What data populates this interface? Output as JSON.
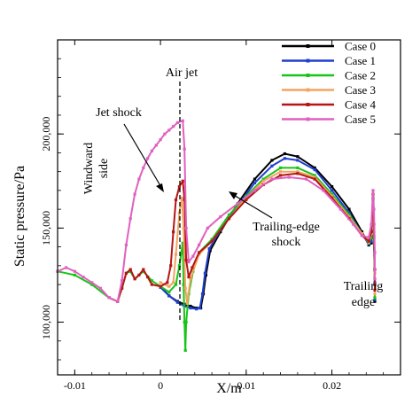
{
  "chart_data": {
    "type": "line",
    "title": "",
    "xlabel": "X/m",
    "ylabel": "Static pressure/Pa",
    "xlim": [
      -0.012,
      0.028
    ],
    "ylim": [
      72000,
      250000
    ],
    "grid": false,
    "legend_position": "top-right",
    "x_ticks": [
      {
        "v": -0.01,
        "label": "-0.01"
      },
      {
        "v": 0,
        "label": "0"
      },
      {
        "v": 0.01,
        "label": "0.01"
      },
      {
        "v": 0.02,
        "label": "0.02"
      }
    ],
    "y_ticks": [
      {
        "v": 100000,
        "label": "100,000"
      },
      {
        "v": 150000,
        "label": "150,000"
      },
      {
        "v": 200000,
        "label": "200,000"
      }
    ],
    "annotations": [
      {
        "id": "air-jet",
        "text": "Air jet"
      },
      {
        "id": "jet-shock",
        "text": "Jet shock"
      },
      {
        "id": "windward-side",
        "text": "Windward side"
      },
      {
        "id": "trailing-edge-shock",
        "text": "Trailing-edge shock"
      },
      {
        "id": "trailing-edge",
        "text": "Trailing edge"
      }
    ],
    "jet_position_x": 0.0029,
    "series": [
      {
        "name": "Case 0",
        "color": "#000000",
        "points": [
          [
            0.0,
            119000
          ],
          [
            0.001,
            114000
          ],
          [
            0.002,
            111000
          ],
          [
            0.0028,
            109500
          ],
          [
            0.0035,
            108500
          ],
          [
            0.0042,
            107500
          ],
          [
            0.0047,
            107500
          ],
          [
            0.005,
            115000
          ],
          [
            0.0053,
            125000
          ],
          [
            0.0058,
            138000
          ],
          [
            0.007,
            148000
          ],
          [
            0.009,
            163000
          ],
          [
            0.011,
            176000
          ],
          [
            0.013,
            186000
          ],
          [
            0.0145,
            189500
          ],
          [
            0.016,
            188000
          ],
          [
            0.018,
            182000
          ],
          [
            0.02,
            172000
          ],
          [
            0.022,
            160000
          ],
          [
            0.0235,
            148000
          ],
          [
            0.0243,
            141000
          ],
          [
            0.0246,
            142000
          ],
          [
            0.0248,
            165000
          ],
          [
            0.0249,
            145000
          ],
          [
            0.025,
            120000
          ],
          [
            0.025,
            111000
          ]
        ]
      },
      {
        "name": "Case 1",
        "color": "#1f3fd0",
        "points": [
          [
            0.0,
            118500
          ],
          [
            0.001,
            114000
          ],
          [
            0.002,
            110500
          ],
          [
            0.0028,
            108500
          ],
          [
            0.0035,
            107500
          ],
          [
            0.0042,
            107000
          ],
          [
            0.0046,
            107500
          ],
          [
            0.0049,
            115000
          ],
          [
            0.0052,
            126000
          ],
          [
            0.0057,
            139000
          ],
          [
            0.007,
            149000
          ],
          [
            0.009,
            162000
          ],
          [
            0.011,
            174000
          ],
          [
            0.013,
            183000
          ],
          [
            0.0145,
            187000
          ],
          [
            0.016,
            186000
          ],
          [
            0.018,
            181000
          ],
          [
            0.02,
            170000
          ],
          [
            0.022,
            158000
          ],
          [
            0.0235,
            147000
          ],
          [
            0.0243,
            141500
          ],
          [
            0.0246,
            143000
          ],
          [
            0.0248,
            166000
          ],
          [
            0.0249,
            146000
          ],
          [
            0.025,
            121000
          ],
          [
            0.025,
            112000
          ]
        ]
      },
      {
        "name": "Case 2",
        "color": "#19c419",
        "points": [
          [
            -0.012,
            127000
          ],
          [
            -0.01,
            125000
          ],
          [
            -0.008,
            120000
          ],
          [
            -0.006,
            113000
          ],
          [
            -0.005,
            111000
          ],
          [
            -0.0045,
            118000
          ],
          [
            -0.004,
            126000
          ],
          [
            -0.0035,
            127000
          ],
          [
            -0.003,
            123000
          ],
          [
            -0.002,
            127000
          ],
          [
            -0.001,
            122000
          ],
          [
            0.0,
            119000
          ],
          [
            0.001,
            116000
          ],
          [
            0.0018,
            120000
          ],
          [
            0.0022,
            130000
          ],
          [
            0.0026,
            142000
          ],
          [
            0.0027,
            120000
          ],
          [
            0.0028,
            100000
          ],
          [
            0.0029,
            85000
          ],
          [
            0.003,
            100000
          ],
          [
            0.0033,
            115000
          ],
          [
            0.0038,
            127000
          ],
          [
            0.0045,
            137000
          ],
          [
            0.006,
            144000
          ],
          [
            0.008,
            157000
          ],
          [
            0.01,
            167000
          ],
          [
            0.012,
            176000
          ],
          [
            0.014,
            182000
          ],
          [
            0.016,
            182000
          ],
          [
            0.018,
            178000
          ],
          [
            0.02,
            168000
          ],
          [
            0.022,
            157000
          ],
          [
            0.0235,
            147000
          ],
          [
            0.0243,
            142000
          ],
          [
            0.0246,
            145000
          ],
          [
            0.0248,
            166000
          ],
          [
            0.0249,
            148000
          ],
          [
            0.025,
            123000
          ],
          [
            0.025,
            113000
          ]
        ]
      },
      {
        "name": "Case 3",
        "color": "#f4a460",
        "points": [
          [
            0.0,
            121000
          ],
          [
            0.001,
            119000
          ],
          [
            0.0015,
            121000
          ],
          [
            0.0018,
            136000
          ],
          [
            0.0022,
            158000
          ],
          [
            0.0025,
            166000
          ],
          [
            0.0027,
            150000
          ],
          [
            0.0029,
            118000
          ],
          [
            0.0031,
            110000
          ],
          [
            0.0035,
            123000
          ],
          [
            0.0045,
            136000
          ],
          [
            0.006,
            143000
          ],
          [
            0.008,
            155000
          ],
          [
            0.01,
            166000
          ],
          [
            0.012,
            175000
          ],
          [
            0.014,
            180000
          ],
          [
            0.016,
            180000
          ],
          [
            0.018,
            177000
          ],
          [
            0.02,
            167000
          ],
          [
            0.022,
            156000
          ],
          [
            0.0235,
            147000
          ],
          [
            0.0243,
            142500
          ],
          [
            0.0246,
            147000
          ],
          [
            0.0248,
            167000
          ],
          [
            0.0249,
            150000
          ],
          [
            0.025,
            126000
          ],
          [
            0.025,
            115000
          ]
        ]
      },
      {
        "name": "Case 4",
        "color": "#b51515",
        "points": [
          [
            -0.006,
            113000
          ],
          [
            -0.005,
            111000
          ],
          [
            -0.0045,
            118000
          ],
          [
            -0.004,
            126000
          ],
          [
            -0.0035,
            128000
          ],
          [
            -0.003,
            123000
          ],
          [
            -0.0025,
            125000
          ],
          [
            -0.002,
            128000
          ],
          [
            -0.0015,
            124000
          ],
          [
            -0.001,
            120000
          ],
          [
            0.0,
            119000
          ],
          [
            0.0008,
            121000
          ],
          [
            0.0012,
            130000
          ],
          [
            0.0015,
            148000
          ],
          [
            0.0018,
            165000
          ],
          [
            0.0022,
            172000
          ],
          [
            0.0026,
            175000
          ],
          [
            0.0028,
            165000
          ],
          [
            0.003,
            133000
          ],
          [
            0.0033,
            124000
          ],
          [
            0.0037,
            129000
          ],
          [
            0.0045,
            137000
          ],
          [
            0.006,
            143000
          ],
          [
            0.008,
            155000
          ],
          [
            0.01,
            165000
          ],
          [
            0.012,
            173000
          ],
          [
            0.014,
            178000
          ],
          [
            0.016,
            179000
          ],
          [
            0.018,
            176000
          ],
          [
            0.02,
            166000
          ],
          [
            0.022,
            155000
          ],
          [
            0.0235,
            146000
          ],
          [
            0.0243,
            143000
          ],
          [
            0.0246,
            148000
          ],
          [
            0.0248,
            168000
          ],
          [
            0.0249,
            152000
          ],
          [
            0.025,
            128000
          ],
          [
            0.025,
            117000
          ]
        ]
      },
      {
        "name": "Case 5",
        "color": "#e060c0",
        "points": [
          [
            -0.012,
            127000
          ],
          [
            -0.011,
            129000
          ],
          [
            -0.01,
            127000
          ],
          [
            -0.009,
            124000
          ],
          [
            -0.008,
            121000
          ],
          [
            -0.007,
            118000
          ],
          [
            -0.006,
            113000
          ],
          [
            -0.005,
            111000
          ],
          [
            -0.0045,
            122000
          ],
          [
            -0.004,
            141000
          ],
          [
            -0.0035,
            155000
          ],
          [
            -0.003,
            168000
          ],
          [
            -0.0025,
            176000
          ],
          [
            -0.002,
            182000
          ],
          [
            -0.0015,
            187000
          ],
          [
            -0.001,
            191000
          ],
          [
            -0.0005,
            194000
          ],
          [
            0.0,
            197000
          ],
          [
            0.0005,
            200000
          ],
          [
            0.001,
            202000
          ],
          [
            0.0015,
            204000
          ],
          [
            0.002,
            206000
          ],
          [
            0.0026,
            207000
          ],
          [
            0.0028,
            192000
          ],
          [
            0.003,
            150000
          ],
          [
            0.0033,
            132000
          ],
          [
            0.0038,
            135000
          ],
          [
            0.0045,
            141000
          ],
          [
            0.0055,
            150000
          ],
          [
            0.007,
            156000
          ],
          [
            0.009,
            163000
          ],
          [
            0.011,
            170000
          ],
          [
            0.013,
            176000
          ],
          [
            0.015,
            177000
          ],
          [
            0.017,
            176000
          ],
          [
            0.019,
            170000
          ],
          [
            0.021,
            160000
          ],
          [
            0.0225,
            152000
          ],
          [
            0.0235,
            146000
          ],
          [
            0.0243,
            145000
          ],
          [
            0.0246,
            152000
          ],
          [
            0.0248,
            170000
          ],
          [
            0.0249,
            160000
          ],
          [
            0.025,
            137000
          ],
          [
            0.025,
            123000
          ]
        ]
      }
    ]
  }
}
